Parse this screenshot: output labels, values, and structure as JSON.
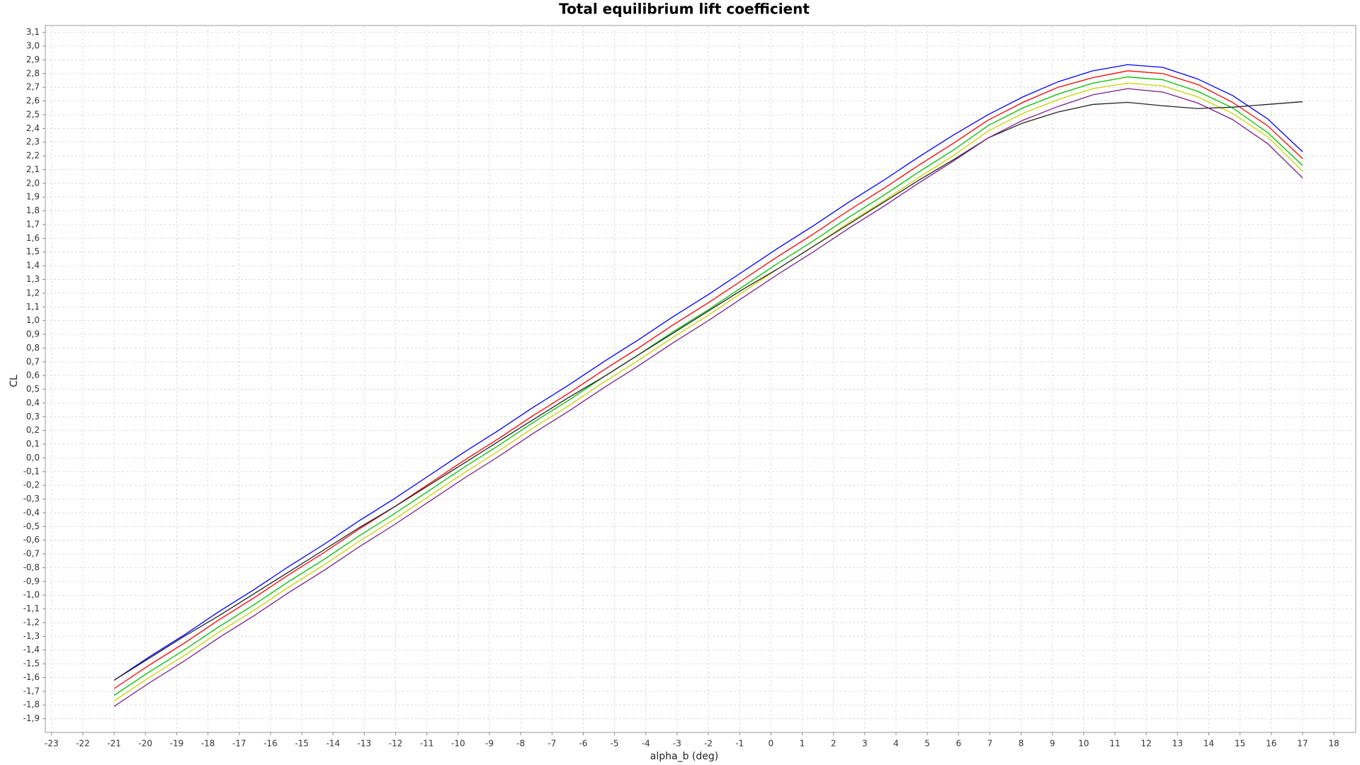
{
  "chart_data": {
    "type": "line",
    "title": "Total equilibrium lift coefficient",
    "xlabel": "alpha_b (deg)",
    "ylabel": "CL",
    "grid": true,
    "xlim": [
      -23.2,
      18.7
    ],
    "ylim": [
      -2.0,
      3.15
    ],
    "xticks": [
      -23,
      -22,
      -21,
      -20,
      -19,
      -18,
      -17,
      -16,
      -15,
      -14,
      -13,
      -12,
      -11,
      -10,
      -9,
      -8,
      -7,
      -6,
      -5,
      -4,
      -3,
      -2,
      -1,
      0,
      1,
      2,
      3,
      4,
      5,
      6,
      7,
      8,
      9,
      10,
      11,
      12,
      13,
      14,
      15,
      16,
      17,
      18
    ],
    "yticks": [
      {
        "value": -1.9,
        "label": "-1,9"
      },
      {
        "value": -1.8,
        "label": "-1,8"
      },
      {
        "value": -1.7,
        "label": "-1,7"
      },
      {
        "value": -1.6,
        "label": "-1,6"
      },
      {
        "value": -1.5,
        "label": "-1,5"
      },
      {
        "value": -1.4,
        "label": "-1,4"
      },
      {
        "value": -1.3,
        "label": "-1,3"
      },
      {
        "value": -1.2,
        "label": "-1,2"
      },
      {
        "value": -1.1,
        "label": "-1,1"
      },
      {
        "value": -1.0,
        "label": "-1,0"
      },
      {
        "value": -0.9,
        "label": "-0,9"
      },
      {
        "value": -0.8,
        "label": "-0,8"
      },
      {
        "value": -0.7,
        "label": "-0,7"
      },
      {
        "value": -0.6,
        "label": "-0,6"
      },
      {
        "value": -0.5,
        "label": "-0,5"
      },
      {
        "value": -0.4,
        "label": "-0,4"
      },
      {
        "value": -0.3,
        "label": "-0,3"
      },
      {
        "value": -0.2,
        "label": "-0,2"
      },
      {
        "value": -0.1,
        "label": "-0,1"
      },
      {
        "value": 0.0,
        "label": "0,0"
      },
      {
        "value": 0.1,
        "label": "0,1"
      },
      {
        "value": 0.2,
        "label": "0,2"
      },
      {
        "value": 0.3,
        "label": "0,3"
      },
      {
        "value": 0.4,
        "label": "0,4"
      },
      {
        "value": 0.5,
        "label": "0,5"
      },
      {
        "value": 0.6,
        "label": "0,6"
      },
      {
        "value": 0.7,
        "label": "0,7"
      },
      {
        "value": 0.8,
        "label": "0,8"
      },
      {
        "value": 0.9,
        "label": "0,9"
      },
      {
        "value": 1.0,
        "label": "1,0"
      },
      {
        "value": 1.1,
        "label": "1,1"
      },
      {
        "value": 1.2,
        "label": "1,2"
      },
      {
        "value": 1.3,
        "label": "1,3"
      },
      {
        "value": 1.4,
        "label": "1,4"
      },
      {
        "value": 1.5,
        "label": "1,5"
      },
      {
        "value": 1.6,
        "label": "1,6"
      },
      {
        "value": 1.7,
        "label": "1,7"
      },
      {
        "value": 1.8,
        "label": "1,8"
      },
      {
        "value": 1.9,
        "label": "1,9"
      },
      {
        "value": 2.0,
        "label": "2,0"
      },
      {
        "value": 2.1,
        "label": "2,1"
      },
      {
        "value": 2.2,
        "label": "2,2"
      },
      {
        "value": 2.3,
        "label": "2,3"
      },
      {
        "value": 2.4,
        "label": "2,4"
      },
      {
        "value": 2.5,
        "label": "2,5"
      },
      {
        "value": 2.6,
        "label": "2,6"
      },
      {
        "value": 2.7,
        "label": "2,7"
      },
      {
        "value": 2.8,
        "label": "2,8"
      },
      {
        "value": 2.9,
        "label": "2,9"
      },
      {
        "value": 3.0,
        "label": "3,0"
      },
      {
        "value": 3.1,
        "label": "3,1"
      }
    ],
    "x": [
      -21,
      -19.88,
      -18.76,
      -17.65,
      -16.53,
      -15.41,
      -14.29,
      -13.18,
      -12.06,
      -10.94,
      -9.82,
      -8.71,
      -7.59,
      -6.47,
      -5.35,
      -4.24,
      -3.12,
      -2.0,
      -0.88,
      0.24,
      1.35,
      2.47,
      3.59,
      4.71,
      5.82,
      6.94,
      8.06,
      9.18,
      10.29,
      11.41,
      12.53,
      13.65,
      14.76,
      15.88,
      17.0
    ],
    "series": [
      {
        "color": "#0000ff",
        "values": [
          -1.62,
          -1.45,
          -1.29,
          -1.12,
          -0.96,
          -0.79,
          -0.63,
          -0.46,
          -0.3,
          -0.13,
          0.04,
          0.2,
          0.37,
          0.53,
          0.7,
          0.86,
          1.03,
          1.19,
          1.36,
          1.53,
          1.69,
          1.86,
          2.02,
          2.19,
          2.35,
          2.5,
          2.63,
          2.74,
          2.82,
          2.865,
          2.845,
          2.76,
          2.64,
          2.47,
          2.23
        ]
      },
      {
        "color": "#ff0000",
        "values": [
          -1.68,
          -1.51,
          -1.35,
          -1.18,
          -1.02,
          -0.85,
          -0.69,
          -0.52,
          -0.36,
          -0.19,
          -0.02,
          0.14,
          0.31,
          0.47,
          0.64,
          0.8,
          0.97,
          1.13,
          1.3,
          1.47,
          1.63,
          1.8,
          1.96,
          2.13,
          2.29,
          2.46,
          2.59,
          2.7,
          2.77,
          2.82,
          2.8,
          2.72,
          2.59,
          2.42,
          2.18
        ]
      },
      {
        "color": "#00c000",
        "values": [
          -1.73,
          -1.56,
          -1.4,
          -1.23,
          -1.07,
          -0.9,
          -0.74,
          -0.57,
          -0.41,
          -0.24,
          -0.07,
          0.09,
          0.26,
          0.42,
          0.59,
          0.75,
          0.92,
          1.08,
          1.25,
          1.42,
          1.58,
          1.75,
          1.91,
          2.08,
          2.24,
          2.42,
          2.55,
          2.65,
          2.73,
          2.775,
          2.755,
          2.67,
          2.55,
          2.37,
          2.13
        ]
      },
      {
        "color": "#c8d400",
        "values": [
          -1.77,
          -1.6,
          -1.44,
          -1.27,
          -1.11,
          -0.94,
          -0.78,
          -0.61,
          -0.45,
          -0.28,
          -0.11,
          0.05,
          0.22,
          0.38,
          0.55,
          0.71,
          0.88,
          1.04,
          1.21,
          1.38,
          1.54,
          1.71,
          1.87,
          2.04,
          2.2,
          2.38,
          2.51,
          2.61,
          2.69,
          2.73,
          2.71,
          2.63,
          2.51,
          2.34,
          2.09
        ]
      },
      {
        "color": "#222222",
        "values": [
          -1.62,
          -1.46,
          -1.3,
          -1.15,
          -0.99,
          -0.83,
          -0.67,
          -0.51,
          -0.36,
          -0.2,
          -0.04,
          0.12,
          0.28,
          0.44,
          0.59,
          0.75,
          0.91,
          1.07,
          1.23,
          1.38,
          1.54,
          1.7,
          1.86,
          2.02,
          2.17,
          2.33,
          2.44,
          2.52,
          2.575,
          2.59,
          2.565,
          2.545,
          2.555,
          2.575,
          2.595
        ]
      },
      {
        "color": "#7a1f8c",
        "values": [
          -1.81,
          -1.64,
          -1.48,
          -1.31,
          -1.15,
          -0.98,
          -0.82,
          -0.65,
          -0.49,
          -0.32,
          -0.15,
          0.01,
          0.18,
          0.34,
          0.51,
          0.67,
          0.84,
          1.0,
          1.17,
          1.34,
          1.5,
          1.67,
          1.83,
          2.0,
          2.16,
          2.33,
          2.46,
          2.56,
          2.645,
          2.69,
          2.665,
          2.585,
          2.465,
          2.29,
          2.04
        ]
      }
    ]
  }
}
